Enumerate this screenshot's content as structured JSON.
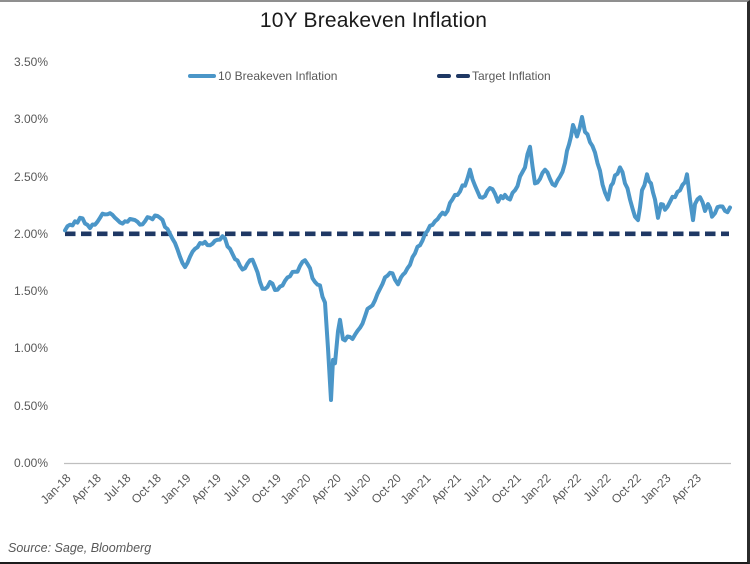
{
  "header": {
    "title": "10Y Breakeven Inflation"
  },
  "legend": {
    "items": [
      {
        "label": "10 Breakeven Inflation",
        "marker": "solid-line",
        "color": "#4b96c8"
      },
      {
        "label": "Target Inflation",
        "marker": "dashed-line",
        "color": "#1f3864"
      }
    ]
  },
  "footer": {
    "source": "Source: Sage, Bloomberg"
  },
  "colors": {
    "series_blue": "#4b96c8",
    "target_navy": "#1f3864",
    "axis_text": "#595959",
    "title_text": "#1a1a1a",
    "axis_line": "#bfbfbf",
    "source_text": "#595959"
  },
  "chart_data": {
    "type": "line",
    "title": "10Y Breakeven Inflation",
    "xlabel": "",
    "ylabel": "",
    "grid": false,
    "legend_position": "top",
    "ylim": [
      0,
      3.5
    ],
    "y_ticks": [
      {
        "label": "3.50%",
        "value": 3.5
      },
      {
        "label": "3.00%",
        "value": 3.0
      },
      {
        "label": "2.50%",
        "value": 2.5
      },
      {
        "label": "2.00%",
        "value": 2.0
      },
      {
        "label": "1.50%",
        "value": 1.5
      },
      {
        "label": "1.00%",
        "value": 1.0
      },
      {
        "label": "0.50%",
        "value": 0.5
      },
      {
        "label": "0.00%",
        "value": 0.0
      }
    ],
    "x_ticks": [
      {
        "label": "Jan-18",
        "t": 0
      },
      {
        "label": "Apr-18",
        "t": 3
      },
      {
        "label": "Jul-18",
        "t": 6
      },
      {
        "label": "Oct-18",
        "t": 9
      },
      {
        "label": "Jan-19",
        "t": 12
      },
      {
        "label": "Apr-19",
        "t": 15
      },
      {
        "label": "Jul-19",
        "t": 18
      },
      {
        "label": "Oct-19",
        "t": 21
      },
      {
        "label": "Jan-20",
        "t": 24
      },
      {
        "label": "Apr-20",
        "t": 27
      },
      {
        "label": "Jul-20",
        "t": 30
      },
      {
        "label": "Oct-20",
        "t": 33
      },
      {
        "label": "Jan-21",
        "t": 36
      },
      {
        "label": "Apr-21",
        "t": 39
      },
      {
        "label": "Jul-21",
        "t": 42
      },
      {
        "label": "Oct-21",
        "t": 45
      },
      {
        "label": "Jan-22",
        "t": 48
      },
      {
        "label": "Apr-22",
        "t": 51
      },
      {
        "label": "Jul-22",
        "t": 54
      },
      {
        "label": "Oct-22",
        "t": 57
      },
      {
        "label": "Jan-23",
        "t": 60
      },
      {
        "label": "Apr-23",
        "t": 63
      }
    ],
    "x_range_months": [
      0,
      66.5
    ],
    "x_unit": "months since Jan-2018",
    "target_series": {
      "name": "Target Inflation",
      "value": 2.0,
      "style": "dashed",
      "color": "#1f3864"
    },
    "series": [
      {
        "name": "10 Breakeven Inflation",
        "color": "#4b96c8",
        "unit": "%",
        "points": [
          [
            0,
            2.03
          ],
          [
            0.5,
            2.08
          ],
          [
            1,
            2.11
          ],
          [
            1.5,
            2.14
          ],
          [
            2,
            2.09
          ],
          [
            2.5,
            2.05
          ],
          [
            3,
            2.08
          ],
          [
            3.5,
            2.14
          ],
          [
            4,
            2.17
          ],
          [
            4.5,
            2.18
          ],
          [
            5,
            2.14
          ],
          [
            5.5,
            2.1
          ],
          [
            6,
            2.11
          ],
          [
            6.5,
            2.13
          ],
          [
            7,
            2.12
          ],
          [
            7.5,
            2.08
          ],
          [
            8,
            2.11
          ],
          [
            8.5,
            2.14
          ],
          [
            9,
            2.16
          ],
          [
            9.5,
            2.14
          ],
          [
            10,
            2.06
          ],
          [
            10.5,
            2.0
          ],
          [
            11,
            1.92
          ],
          [
            11.5,
            1.8
          ],
          [
            12,
            1.71
          ],
          [
            12.5,
            1.8
          ],
          [
            13,
            1.87
          ],
          [
            13.5,
            1.92
          ],
          [
            14,
            1.93
          ],
          [
            14.5,
            1.9
          ],
          [
            15,
            1.94
          ],
          [
            15.5,
            1.95
          ],
          [
            16,
            1.96
          ],
          [
            16.5,
            1.87
          ],
          [
            17,
            1.78
          ],
          [
            17.5,
            1.72
          ],
          [
            18,
            1.7
          ],
          [
            18.5,
            1.77
          ],
          [
            19,
            1.72
          ],
          [
            19.5,
            1.58
          ],
          [
            20,
            1.52
          ],
          [
            20.5,
            1.58
          ],
          [
            21,
            1.51
          ],
          [
            21.5,
            1.54
          ],
          [
            22,
            1.59
          ],
          [
            22.5,
            1.63
          ],
          [
            23,
            1.67
          ],
          [
            23.5,
            1.72
          ],
          [
            24,
            1.77
          ],
          [
            24.5,
            1.7
          ],
          [
            25,
            1.58
          ],
          [
            25.5,
            1.55
          ],
          [
            26,
            1.4
          ],
          [
            26.3,
            1.0
          ],
          [
            26.6,
            0.55
          ],
          [
            26.8,
            0.9
          ],
          [
            27,
            0.87
          ],
          [
            27.3,
            1.15
          ],
          [
            27.5,
            1.25
          ],
          [
            27.8,
            1.08
          ],
          [
            28,
            1.07
          ],
          [
            28.5,
            1.1
          ],
          [
            29,
            1.12
          ],
          [
            29.5,
            1.18
          ],
          [
            30,
            1.28
          ],
          [
            30.5,
            1.36
          ],
          [
            31,
            1.42
          ],
          [
            31.5,
            1.52
          ],
          [
            32,
            1.62
          ],
          [
            32.5,
            1.66
          ],
          [
            33,
            1.6
          ],
          [
            33.3,
            1.56
          ],
          [
            33.6,
            1.62
          ],
          [
            34,
            1.66
          ],
          [
            34.5,
            1.73
          ],
          [
            35,
            1.83
          ],
          [
            35.5,
            1.9
          ],
          [
            36,
            2.0
          ],
          [
            36.5,
            2.07
          ],
          [
            37,
            2.11
          ],
          [
            37.5,
            2.16
          ],
          [
            38,
            2.17
          ],
          [
            38.5,
            2.27
          ],
          [
            39,
            2.34
          ],
          [
            39.5,
            2.37
          ],
          [
            40,
            2.42
          ],
          [
            40.5,
            2.56
          ],
          [
            41,
            2.42
          ],
          [
            41.5,
            2.32
          ],
          [
            42,
            2.33
          ],
          [
            42.5,
            2.4
          ],
          [
            43,
            2.35
          ],
          [
            43.3,
            2.28
          ],
          [
            43.6,
            2.33
          ],
          [
            44,
            2.34
          ],
          [
            44.5,
            2.3
          ],
          [
            45,
            2.38
          ],
          [
            45.5,
            2.5
          ],
          [
            46,
            2.58
          ],
          [
            46.5,
            2.76
          ],
          [
            47,
            2.44
          ],
          [
            47.5,
            2.48
          ],
          [
            48,
            2.56
          ],
          [
            48.5,
            2.48
          ],
          [
            49,
            2.42
          ],
          [
            49.5,
            2.5
          ],
          [
            50,
            2.62
          ],
          [
            50.4,
            2.78
          ],
          [
            50.8,
            2.95
          ],
          [
            51.2,
            2.85
          ],
          [
            51.7,
            3.02
          ],
          [
            52,
            2.89
          ],
          [
            52.5,
            2.8
          ],
          [
            53,
            2.71
          ],
          [
            53.5,
            2.55
          ],
          [
            54,
            2.36
          ],
          [
            54.3,
            2.3
          ],
          [
            54.6,
            2.42
          ],
          [
            55,
            2.51
          ],
          [
            55.5,
            2.58
          ],
          [
            56,
            2.44
          ],
          [
            56.5,
            2.3
          ],
          [
            57,
            2.15
          ],
          [
            57.3,
            2.12
          ],
          [
            57.7,
            2.38
          ],
          [
            58.2,
            2.52
          ],
          [
            58.6,
            2.44
          ],
          [
            59,
            2.3
          ],
          [
            59.3,
            2.14
          ],
          [
            59.6,
            2.26
          ],
          [
            60,
            2.21
          ],
          [
            60.5,
            2.28
          ],
          [
            61,
            2.32
          ],
          [
            61.5,
            2.38
          ],
          [
            62,
            2.45
          ],
          [
            62.2,
            2.52
          ],
          [
            62.5,
            2.3
          ],
          [
            62.8,
            2.12
          ],
          [
            63,
            2.26
          ],
          [
            63.5,
            2.32
          ],
          [
            64,
            2.2
          ],
          [
            64.3,
            2.26
          ],
          [
            64.7,
            2.15
          ],
          [
            65,
            2.18
          ],
          [
            65.5,
            2.24
          ],
          [
            66,
            2.2
          ],
          [
            66.5,
            2.23
          ]
        ]
      }
    ],
    "render_hints": {
      "noise_amp_pct": 0.03,
      "series_is_daily": true
    }
  }
}
